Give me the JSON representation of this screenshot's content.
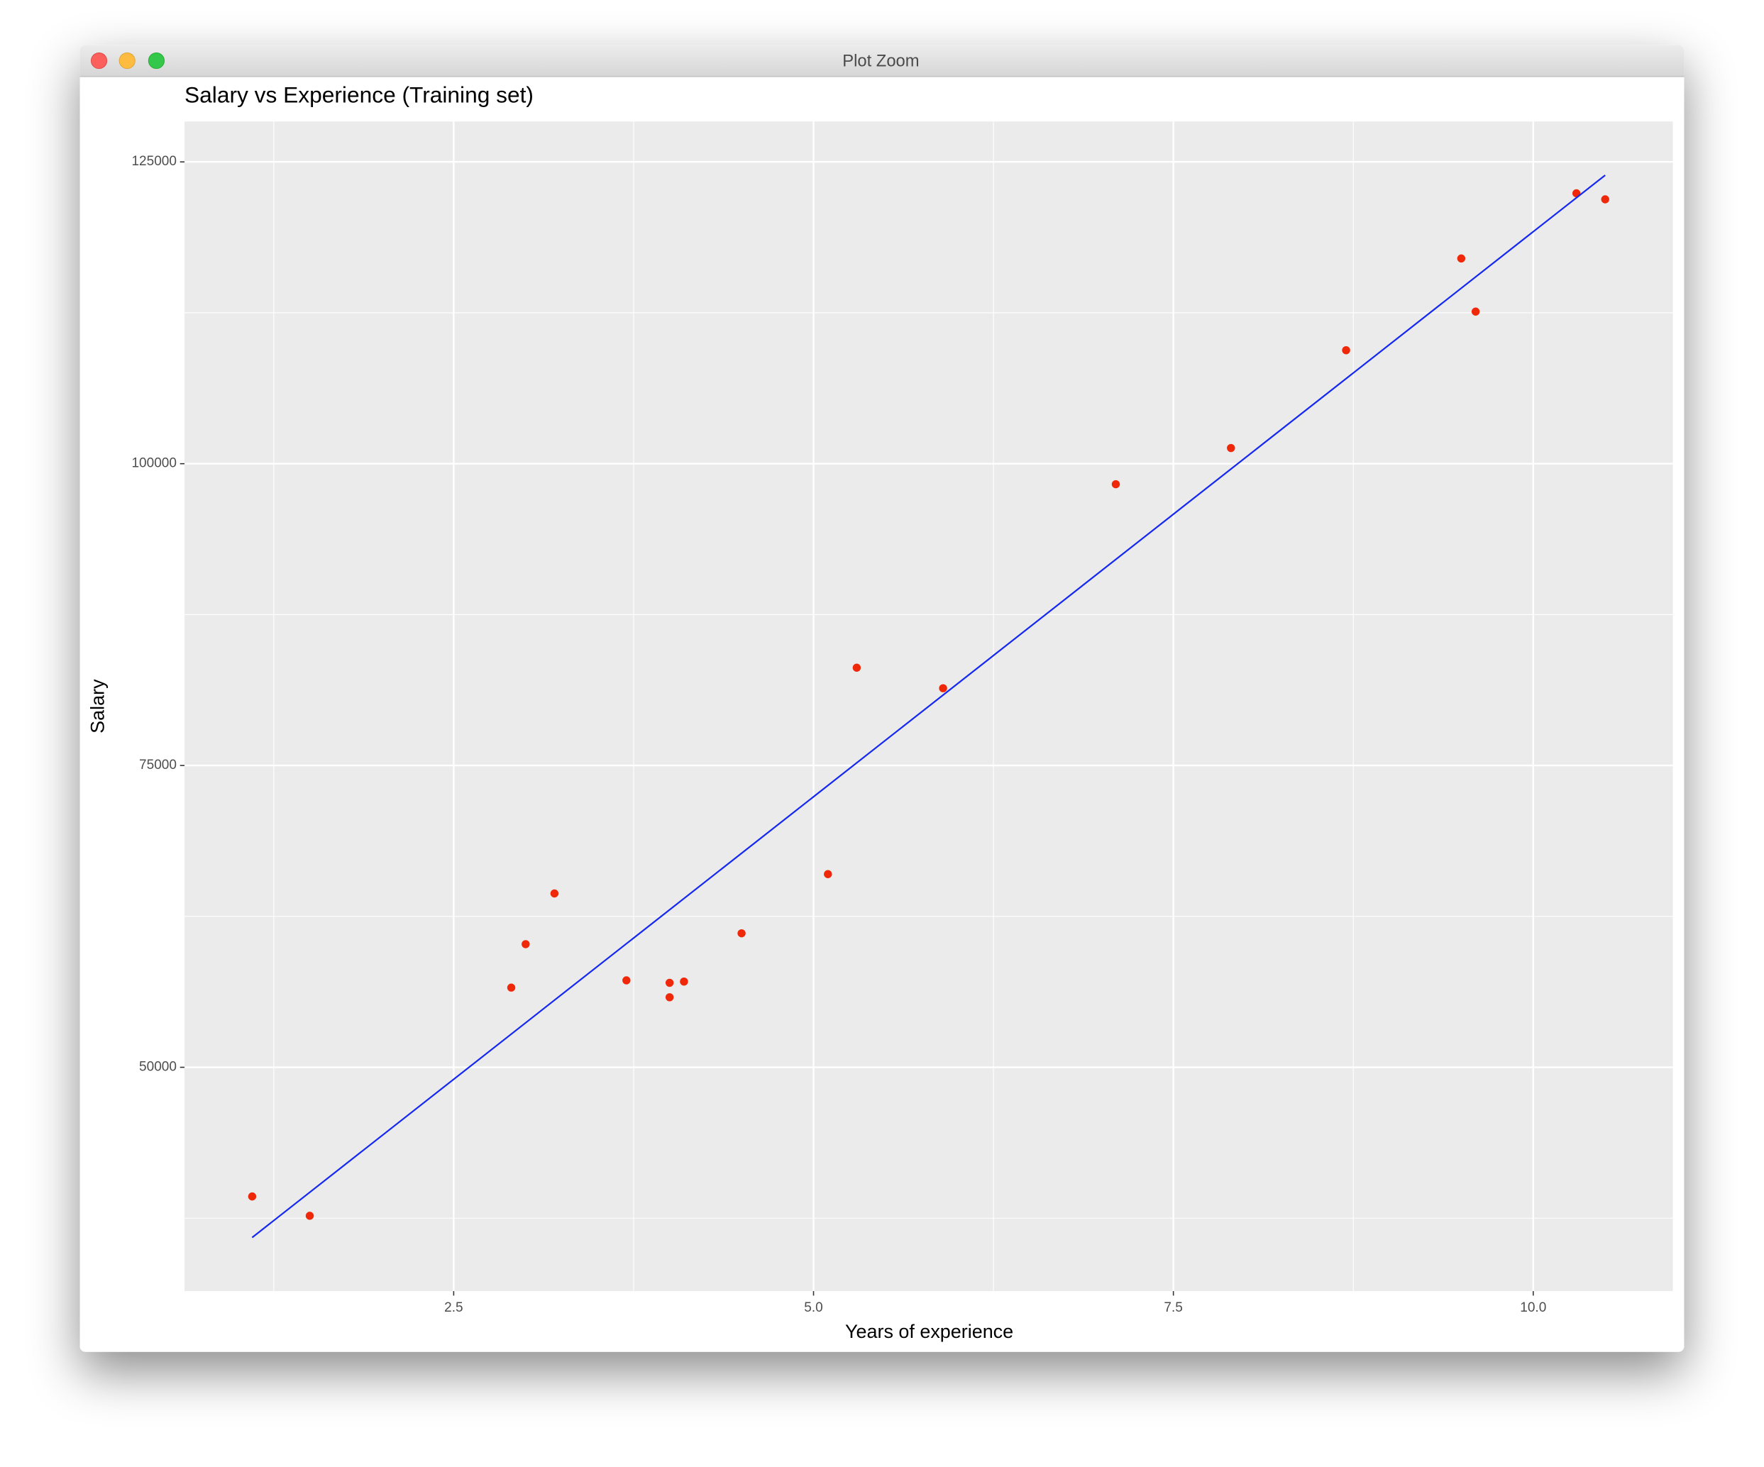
{
  "window_title": "Plot Zoom",
  "chart_data": {
    "type": "scatter",
    "title": "Salary vs Experience (Training set)",
    "x_label": "Years of experience",
    "y_label": "Salary",
    "x": [
      1.1,
      1.5,
      2.9,
      3.0,
      3.2,
      3.7,
      4.0,
      4.0,
      4.1,
      4.5,
      5.1,
      5.3,
      5.9,
      7.1,
      7.9,
      8.7,
      9.5,
      9.6,
      10.3,
      10.5
    ],
    "values": [
      39300,
      37700,
      56600,
      60200,
      64400,
      57200,
      57000,
      55800,
      57100,
      61100,
      66000,
      83100,
      81400,
      98300,
      101300,
      109400,
      117000,
      112600,
      122400,
      121900
    ],
    "color": "#f0280a",
    "line": {
      "x": [
        1.1,
        10.5
      ],
      "y": [
        35900,
        123900
      ],
      "color": "#1428f0"
    },
    "xlim": [
      0.63,
      10.97
    ],
    "ylim": [
      31460,
      128350
    ],
    "xticks": [
      2.5,
      {
        "value": 5,
        "label": "5.0"
      },
      7.5,
      {
        "value": 10,
        "label": "10.0"
      }
    ],
    "yticks": [
      50000,
      75000,
      100000,
      125000
    ],
    "x_minor": [
      1.25,
      3.75,
      6.25,
      8.75
    ],
    "y_minor": [
      37500,
      62500,
      87500,
      112500
    ],
    "grid": true
  }
}
